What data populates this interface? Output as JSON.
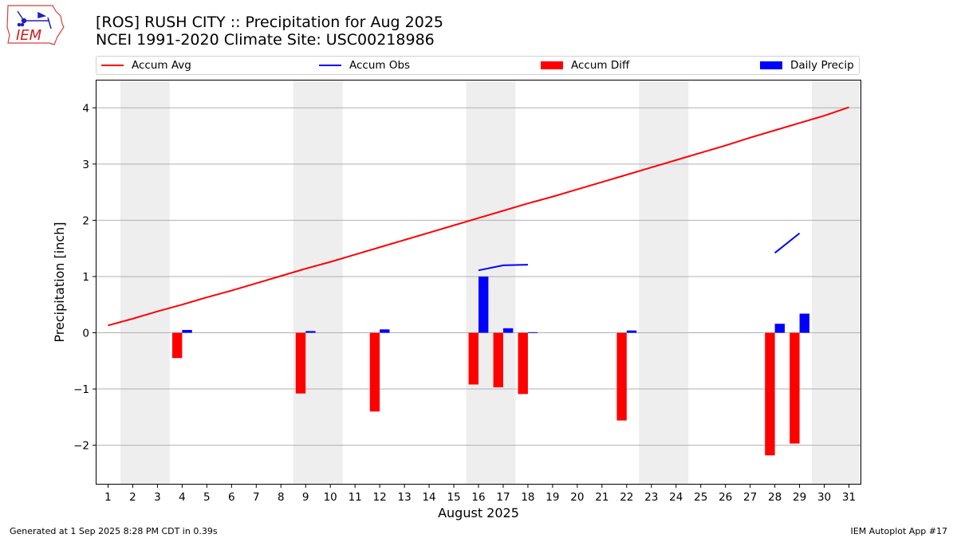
{
  "header": {
    "line1": "[ROS] RUSH CITY :: Precipitation for Aug 2025",
    "line2": "NCEI 1991-2020 Climate Site: USC00218986"
  },
  "logo": {
    "text": "IEM"
  },
  "legend": [
    {
      "label": "Accum Avg",
      "kind": "line",
      "color": "#ff0000"
    },
    {
      "label": "Accum Obs",
      "kind": "line",
      "color": "#0000ff"
    },
    {
      "label": "Accum Diff",
      "kind": "bar",
      "color": "#ff0000"
    },
    {
      "label": "Daily Precip",
      "kind": "bar",
      "color": "#0000ff"
    }
  ],
  "footer": {
    "left": "Generated at 1 Sep 2025 8:28 PM CDT in 0.39s",
    "right": "IEM Autoplot App #17"
  },
  "chart_data": {
    "type": "bar",
    "xlabel": "August 2025",
    "ylabel": "Precipitation [inch]",
    "xlim": [
      0.5,
      31.5
    ],
    "ylim": [
      -2.7,
      4.5
    ],
    "yticks": [
      -2,
      -1,
      0,
      1,
      2,
      3,
      4
    ],
    "ytick_labels": [
      "−2",
      "−1",
      "0",
      "1",
      "2",
      "3",
      "4"
    ],
    "days": [
      1,
      2,
      3,
      4,
      5,
      6,
      7,
      8,
      9,
      10,
      11,
      12,
      13,
      14,
      15,
      16,
      17,
      18,
      19,
      20,
      21,
      22,
      23,
      24,
      25,
      26,
      27,
      28,
      29,
      30,
      31
    ],
    "weekend_bands": [
      [
        1.5,
        3.5
      ],
      [
        8.5,
        10.5
      ],
      [
        15.5,
        17.5
      ],
      [
        22.5,
        24.5
      ],
      [
        29.5,
        31.5
      ]
    ],
    "grid": "horizontal",
    "series": [
      {
        "name": "Accum Avg",
        "type": "line",
        "color": "#ff0000",
        "x": [
          1,
          2,
          3,
          4,
          5,
          6,
          7,
          8,
          9,
          10,
          11,
          12,
          13,
          14,
          15,
          16,
          17,
          18,
          19,
          20,
          21,
          22,
          23,
          24,
          25,
          26,
          27,
          28,
          29,
          30,
          31
        ],
        "values": [
          0.13,
          0.25,
          0.38,
          0.5,
          0.63,
          0.75,
          0.88,
          1.01,
          1.14,
          1.26,
          1.39,
          1.52,
          1.65,
          1.78,
          1.91,
          2.04,
          2.17,
          2.3,
          2.42,
          2.55,
          2.68,
          2.81,
          2.94,
          3.07,
          3.2,
          3.33,
          3.47,
          3.6,
          3.73,
          3.86,
          4.01
        ]
      },
      {
        "name": "Accum Obs",
        "type": "line",
        "color": "#0000ff",
        "segments": [
          {
            "x": [
              16,
              17,
              18
            ],
            "values": [
              1.11,
              1.2,
              1.21
            ]
          },
          {
            "x": [
              28,
              29
            ],
            "values": [
              1.42,
              1.77
            ]
          }
        ]
      },
      {
        "name": "Accum Diff",
        "type": "bar",
        "color": "#ff0000",
        "x": [
          4,
          9,
          12,
          16,
          17,
          18,
          22,
          28,
          29
        ],
        "values": [
          -0.45,
          -1.08,
          -1.4,
          -0.92,
          -0.97,
          -1.09,
          -1.56,
          -2.18,
          -1.97
        ]
      },
      {
        "name": "Daily Precip",
        "type": "bar",
        "color": "#0000ff",
        "x": [
          4,
          9,
          12,
          16,
          17,
          18,
          22,
          28,
          29
        ],
        "values": [
          0.05,
          0.03,
          0.06,
          1.0,
          0.08,
          0.01,
          0.04,
          0.16,
          0.34
        ]
      }
    ]
  }
}
